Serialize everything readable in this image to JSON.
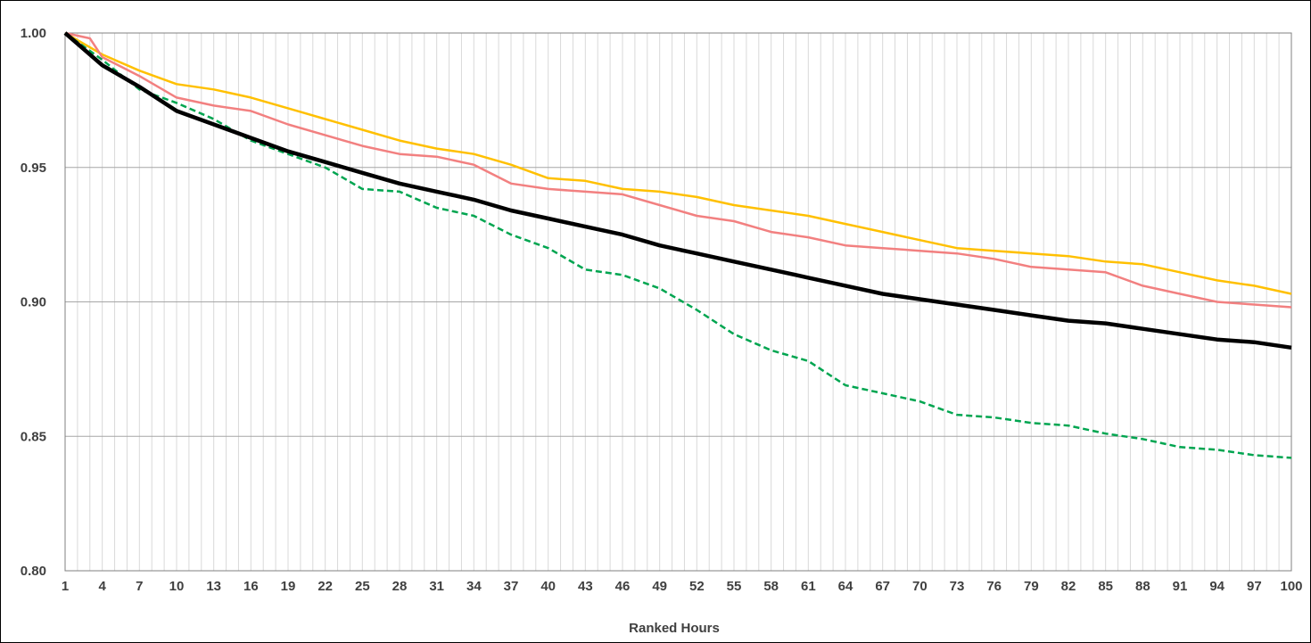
{
  "chart_data": {
    "type": "line",
    "title": "",
    "xlabel": "Ranked Hours",
    "ylabel": "",
    "ylim": [
      0.8,
      1.0
    ],
    "yticks": [
      "0.80",
      "0.85",
      "0.90",
      "0.95",
      "1.00"
    ],
    "xlim": [
      1,
      100
    ],
    "xticks": [
      "1",
      "4",
      "7",
      "10",
      "13",
      "16",
      "19",
      "22",
      "25",
      "28",
      "31",
      "34",
      "37",
      "40",
      "43",
      "46",
      "49",
      "52",
      "55",
      "58",
      "61",
      "64",
      "67",
      "70",
      "73",
      "76",
      "79",
      "82",
      "85",
      "88",
      "91",
      "94",
      "97",
      "100"
    ],
    "grid": true,
    "legend": "none",
    "series": [
      {
        "color": "#FFC000",
        "style": "solid",
        "width": "thin",
        "points": [
          [
            1,
            1.0
          ],
          [
            4,
            0.992
          ],
          [
            7,
            0.986
          ],
          [
            10,
            0.981
          ],
          [
            13,
            0.979
          ],
          [
            16,
            0.976
          ],
          [
            19,
            0.972
          ],
          [
            22,
            0.968
          ],
          [
            25,
            0.964
          ],
          [
            28,
            0.96
          ],
          [
            31,
            0.957
          ],
          [
            34,
            0.955
          ],
          [
            37,
            0.951
          ],
          [
            40,
            0.946
          ],
          [
            43,
            0.945
          ],
          [
            46,
            0.942
          ],
          [
            49,
            0.941
          ],
          [
            52,
            0.939
          ],
          [
            55,
            0.936
          ],
          [
            58,
            0.934
          ],
          [
            61,
            0.932
          ],
          [
            64,
            0.929
          ],
          [
            67,
            0.926
          ],
          [
            70,
            0.923
          ],
          [
            73,
            0.92
          ],
          [
            76,
            0.919
          ],
          [
            79,
            0.918
          ],
          [
            82,
            0.917
          ],
          [
            85,
            0.915
          ],
          [
            88,
            0.914
          ],
          [
            91,
            0.911
          ],
          [
            94,
            0.908
          ],
          [
            97,
            0.906
          ],
          [
            100,
            0.903
          ]
        ]
      },
      {
        "color": "#F28080",
        "style": "solid",
        "width": "thin",
        "points": [
          [
            1,
            1.0
          ],
          [
            3,
            0.998
          ],
          [
            4,
            0.991
          ],
          [
            7,
            0.984
          ],
          [
            10,
            0.976
          ],
          [
            13,
            0.973
          ],
          [
            16,
            0.971
          ],
          [
            19,
            0.966
          ],
          [
            22,
            0.962
          ],
          [
            25,
            0.958
          ],
          [
            28,
            0.955
          ],
          [
            31,
            0.954
          ],
          [
            34,
            0.951
          ],
          [
            37,
            0.944
          ],
          [
            40,
            0.942
          ],
          [
            43,
            0.941
          ],
          [
            46,
            0.94
          ],
          [
            49,
            0.936
          ],
          [
            52,
            0.932
          ],
          [
            55,
            0.93
          ],
          [
            58,
            0.926
          ],
          [
            61,
            0.924
          ],
          [
            64,
            0.921
          ],
          [
            67,
            0.92
          ],
          [
            70,
            0.919
          ],
          [
            73,
            0.918
          ],
          [
            76,
            0.916
          ],
          [
            79,
            0.913
          ],
          [
            82,
            0.912
          ],
          [
            85,
            0.911
          ],
          [
            88,
            0.906
          ],
          [
            91,
            0.903
          ],
          [
            94,
            0.9
          ],
          [
            97,
            0.899
          ],
          [
            100,
            0.898
          ]
        ]
      },
      {
        "color": "#00A550",
        "style": "dashed",
        "width": "medium",
        "points": [
          [
            1,
            1.0
          ],
          [
            4,
            0.99
          ],
          [
            7,
            0.979
          ],
          [
            10,
            0.974
          ],
          [
            13,
            0.968
          ],
          [
            16,
            0.96
          ],
          [
            19,
            0.955
          ],
          [
            22,
            0.95
          ],
          [
            25,
            0.942
          ],
          [
            28,
            0.941
          ],
          [
            31,
            0.935
          ],
          [
            34,
            0.932
          ],
          [
            37,
            0.925
          ],
          [
            40,
            0.92
          ],
          [
            43,
            0.912
          ],
          [
            46,
            0.91
          ],
          [
            49,
            0.905
          ],
          [
            52,
            0.897
          ],
          [
            55,
            0.888
          ],
          [
            58,
            0.882
          ],
          [
            61,
            0.878
          ],
          [
            64,
            0.869
          ],
          [
            67,
            0.866
          ],
          [
            70,
            0.863
          ],
          [
            73,
            0.858
          ],
          [
            76,
            0.857
          ],
          [
            79,
            0.855
          ],
          [
            82,
            0.854
          ],
          [
            85,
            0.851
          ],
          [
            88,
            0.849
          ],
          [
            91,
            0.846
          ],
          [
            94,
            0.845
          ],
          [
            97,
            0.843
          ],
          [
            100,
            0.842
          ]
        ]
      },
      {
        "color": "#000000",
        "style": "solid",
        "width": "thick",
        "points": [
          [
            1,
            1.0
          ],
          [
            4,
            0.988
          ],
          [
            7,
            0.98
          ],
          [
            10,
            0.971
          ],
          [
            13,
            0.966
          ],
          [
            16,
            0.961
          ],
          [
            19,
            0.956
          ],
          [
            22,
            0.952
          ],
          [
            25,
            0.948
          ],
          [
            28,
            0.944
          ],
          [
            31,
            0.941
          ],
          [
            34,
            0.938
          ],
          [
            37,
            0.934
          ],
          [
            40,
            0.931
          ],
          [
            43,
            0.928
          ],
          [
            46,
            0.925
          ],
          [
            49,
            0.921
          ],
          [
            52,
            0.918
          ],
          [
            55,
            0.915
          ],
          [
            58,
            0.912
          ],
          [
            61,
            0.909
          ],
          [
            64,
            0.906
          ],
          [
            67,
            0.903
          ],
          [
            70,
            0.901
          ],
          [
            73,
            0.899
          ],
          [
            76,
            0.897
          ],
          [
            79,
            0.895
          ],
          [
            82,
            0.893
          ],
          [
            85,
            0.892
          ],
          [
            88,
            0.89
          ],
          [
            91,
            0.888
          ],
          [
            94,
            0.886
          ],
          [
            97,
            0.885
          ],
          [
            100,
            0.883
          ]
        ]
      }
    ]
  }
}
